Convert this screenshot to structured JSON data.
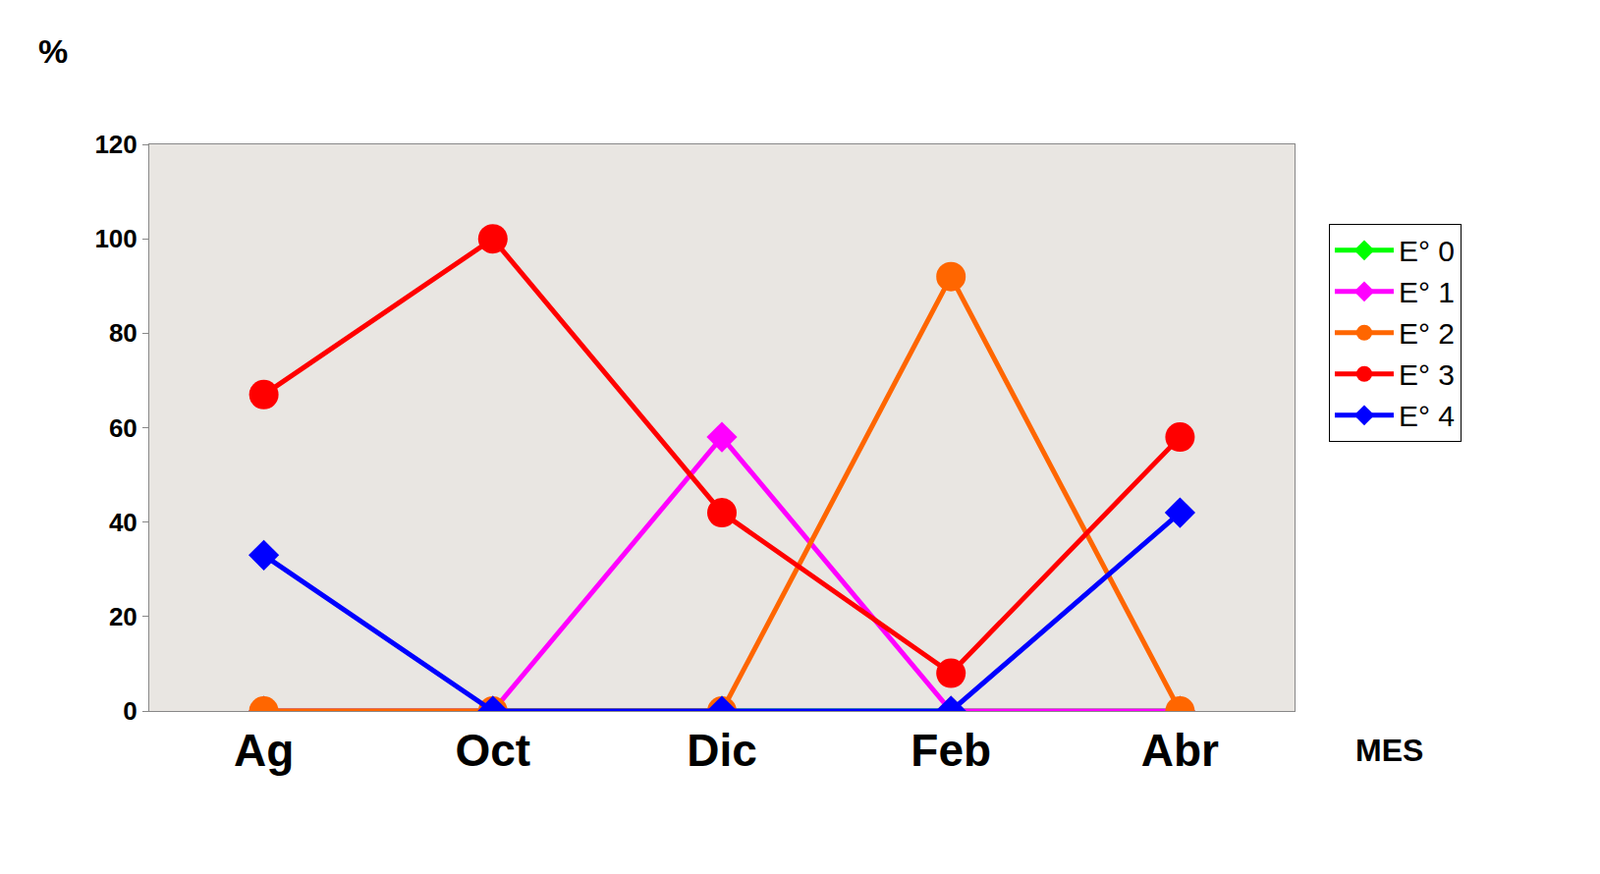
{
  "chart_data": {
    "type": "line",
    "x_label": "MES",
    "y_label": "%",
    "categories": [
      "Ag",
      "Oct",
      "Dic",
      "Feb",
      "Abr"
    ],
    "series": [
      {
        "name": "E° 0",
        "color": "#00ff00",
        "marker": "diamond",
        "values": [
          0,
          0,
          0,
          0,
          0
        ]
      },
      {
        "name": "E° 1",
        "color": "#ff00ff",
        "marker": "diamond",
        "values": [
          0,
          0,
          58,
          0,
          0
        ]
      },
      {
        "name": "E° 2",
        "color": "#ff6600",
        "marker": "circle",
        "values": [
          0,
          0,
          0,
          92,
          0
        ]
      },
      {
        "name": "E° 3",
        "color": "#ff0000",
        "marker": "circle",
        "values": [
          67,
          100,
          42,
          8,
          58
        ]
      },
      {
        "name": "E° 4",
        "color": "#0000ff",
        "marker": "diamond",
        "values": [
          33,
          0,
          0,
          0,
          42
        ]
      }
    ],
    "ylim": [
      0,
      120
    ],
    "yticks": [
      0,
      20,
      40,
      60,
      80,
      100,
      120
    ],
    "grid": false,
    "legend": "right"
  }
}
